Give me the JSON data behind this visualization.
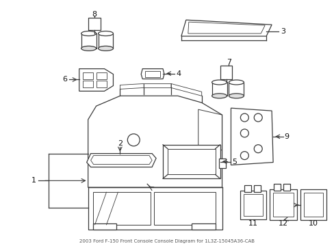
{
  "title": "2003 Ford F-150 Front Console Console Diagram for 1L3Z-15045A36-CAB",
  "bg": "#ffffff",
  "lc": "#3a3a3a",
  "figsize": [
    4.89,
    3.6
  ],
  "dpi": 100
}
